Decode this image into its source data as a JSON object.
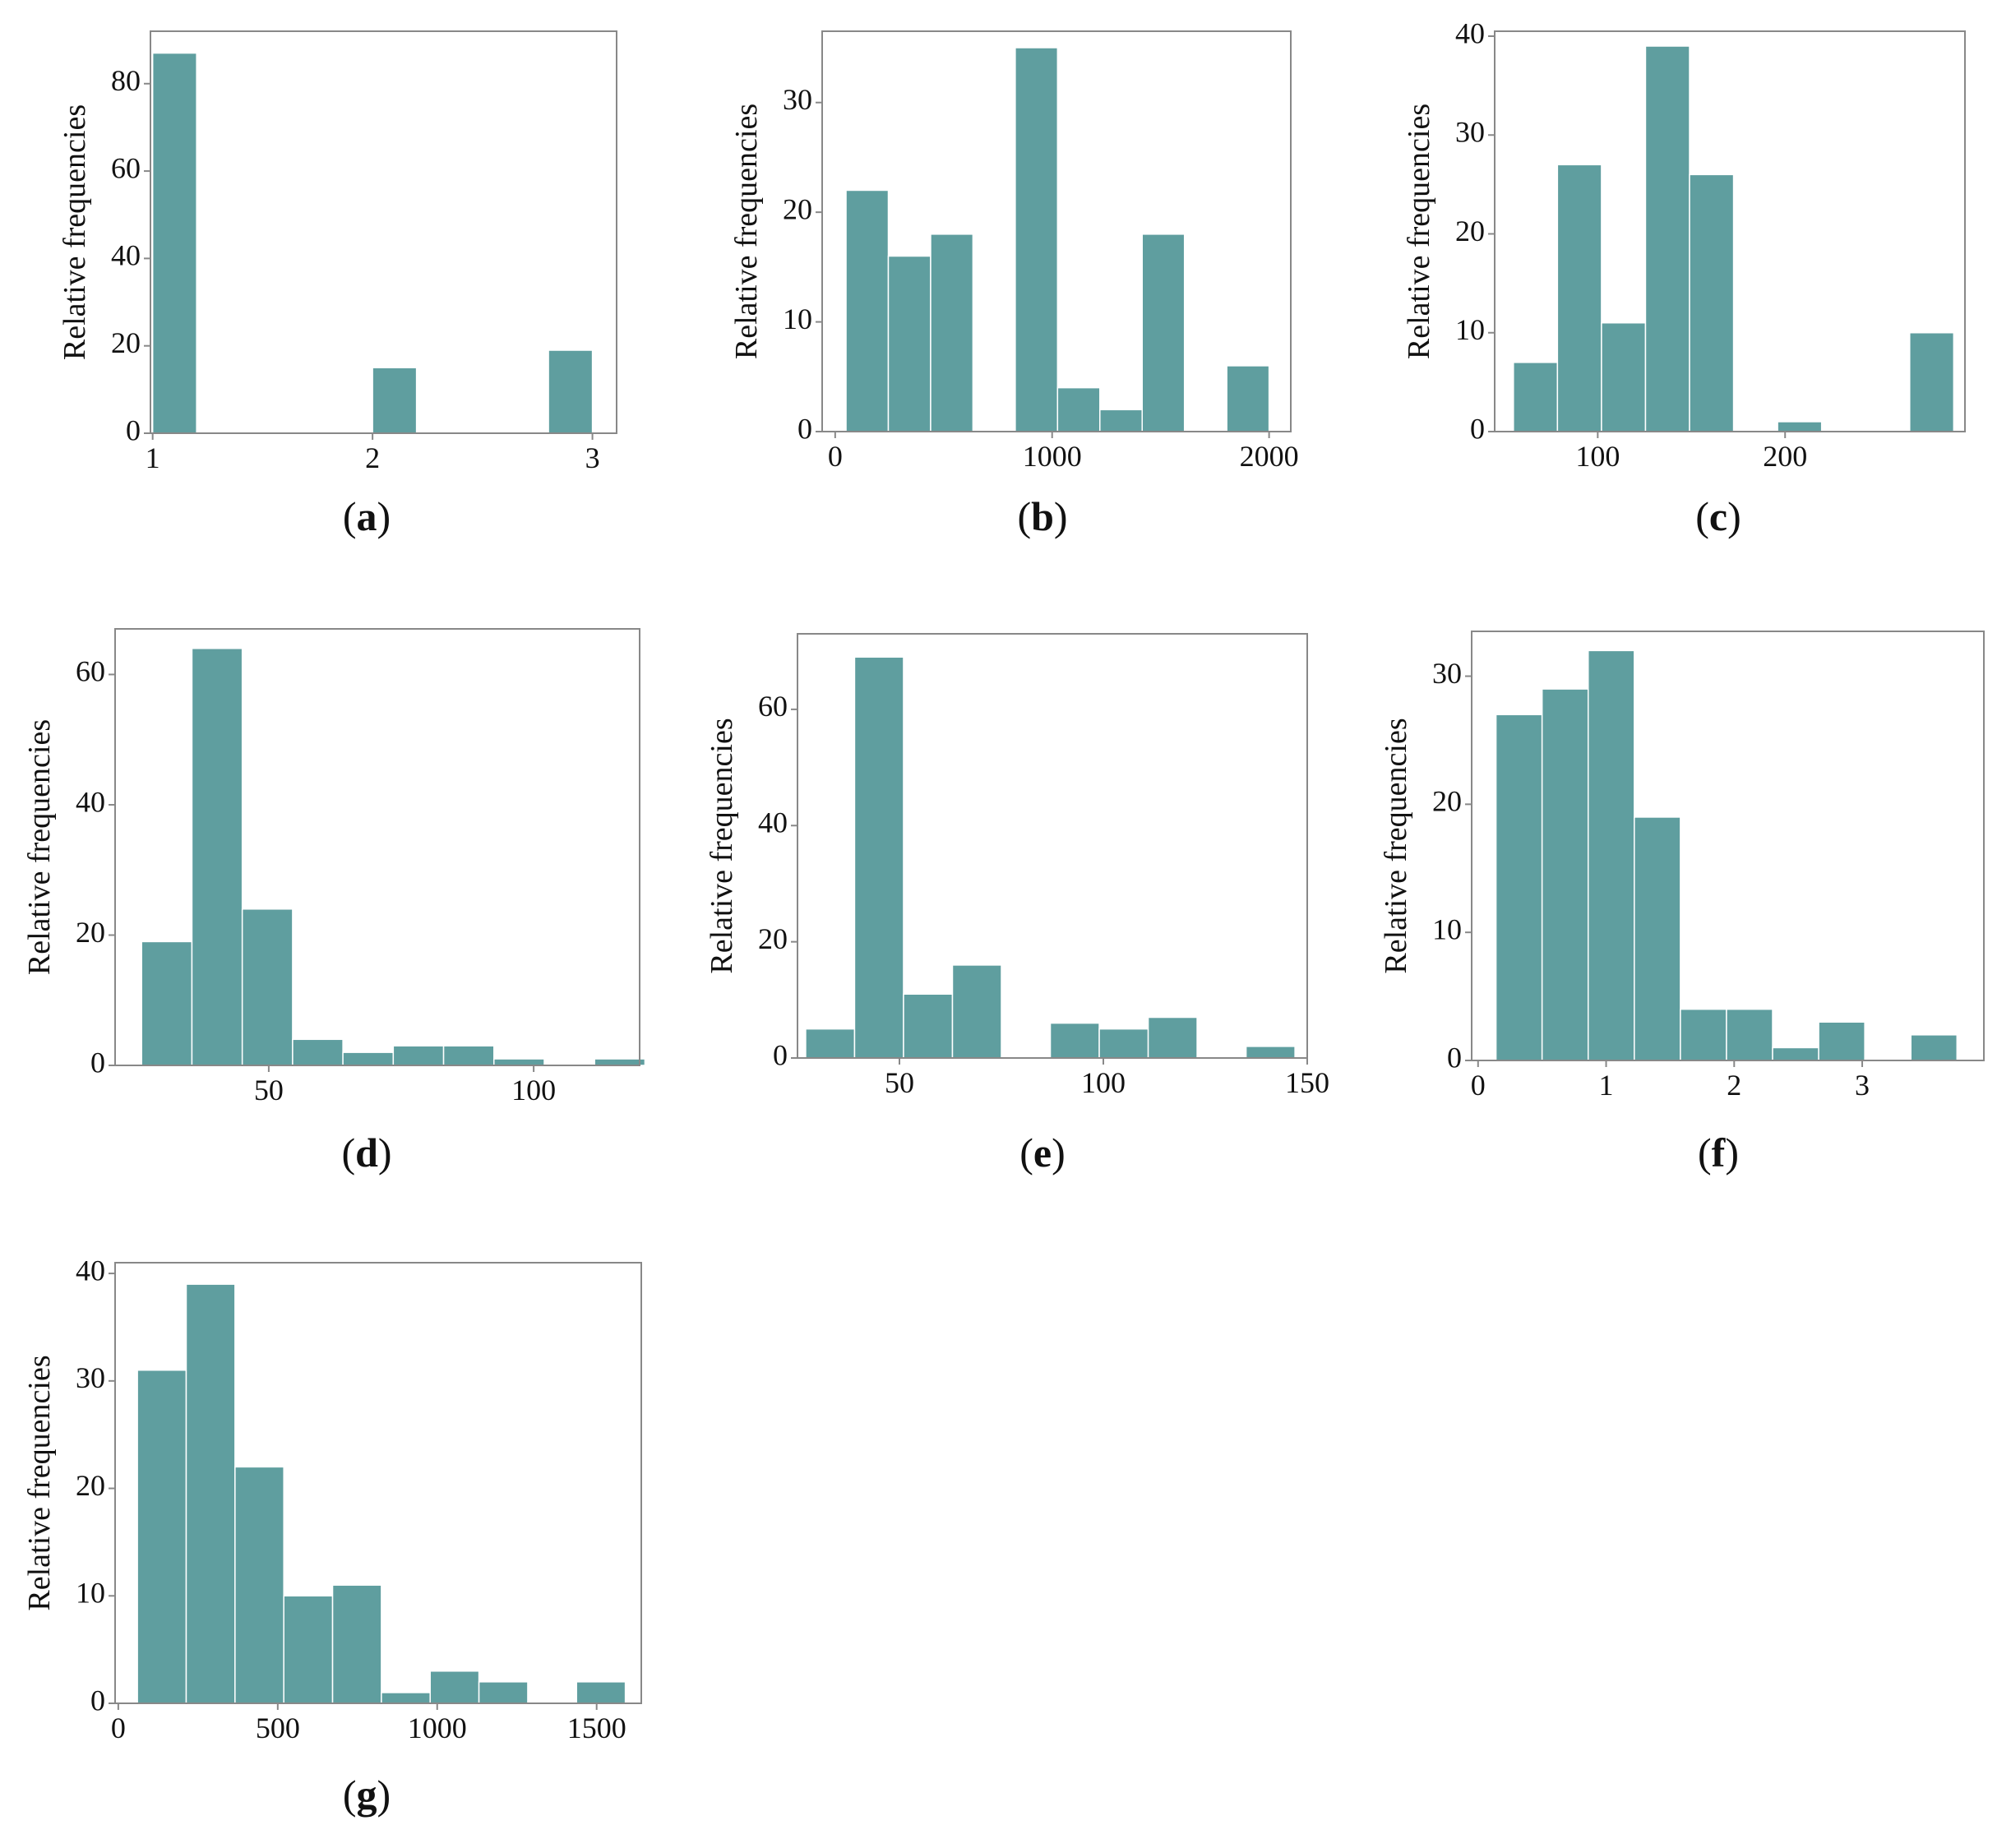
{
  "colors": {
    "bar": "#5f9e9f",
    "bar_edge": "#ffffff",
    "frame": "#888888",
    "text": "#111111"
  },
  "chart_data": [
    {
      "id": "a",
      "type": "bar",
      "caption": "a",
      "title": "",
      "xlabel": "",
      "ylabel": "Relative frequencies",
      "xlim": [
        0.99,
        3.11
      ],
      "ylim": [
        0,
        92
      ],
      "xticks": [
        1,
        2,
        3
      ],
      "yticks": [
        0,
        20,
        40,
        60,
        80
      ],
      "bins": [
        [
          1.0,
          1.2,
          87
        ],
        [
          2.0,
          2.2,
          15
        ],
        [
          2.8,
          3.0,
          19
        ]
      ]
    },
    {
      "id": "b",
      "type": "bar",
      "caption": "b",
      "title": "",
      "xlabel": "",
      "ylabel": "Relative frequencies",
      "xlim": [
        -60,
        2100
      ],
      "ylim": [
        0,
        36.5
      ],
      "xticks": [
        0,
        1000,
        2000
      ],
      "yticks": [
        0,
        10,
        20,
        30
      ],
      "bins": [
        [
          50,
          245,
          22
        ],
        [
          245,
          440,
          16
        ],
        [
          440,
          635,
          18
        ],
        [
          830,
          1025,
          35
        ],
        [
          1025,
          1220,
          4
        ],
        [
          1220,
          1415,
          2
        ],
        [
          1415,
          1610,
          18
        ],
        [
          1805,
          2000,
          6
        ]
      ]
    },
    {
      "id": "c",
      "type": "bar",
      "caption": "c",
      "title": "",
      "xlabel": "",
      "ylabel": "Relative frequencies",
      "xlim": [
        45,
        296
      ],
      "ylim": [
        0,
        40.5
      ],
      "xticks": [
        100,
        200
      ],
      "yticks": [
        0,
        10,
        20,
        30,
        40
      ],
      "bins": [
        [
          55,
          78.5,
          7
        ],
        [
          78.5,
          102,
          27
        ],
        [
          102,
          125.5,
          11
        ],
        [
          125.5,
          149,
          39
        ],
        [
          149,
          172.5,
          26
        ],
        [
          196,
          219.5,
          1
        ],
        [
          266.5,
          290,
          10
        ]
      ]
    },
    {
      "id": "d",
      "type": "bar",
      "caption": "d",
      "title": "",
      "xlabel": "",
      "ylabel": "Relative frequencies",
      "xlim": [
        21,
        120
      ],
      "ylim": [
        0,
        67
      ],
      "xticks": [
        50,
        100
      ],
      "yticks": [
        0,
        20,
        40,
        60
      ],
      "bins": [
        [
          26,
          35.5,
          19
        ],
        [
          35.5,
          45,
          64
        ],
        [
          45,
          54.5,
          24
        ],
        [
          54.5,
          64,
          4
        ],
        [
          64,
          73.5,
          2
        ],
        [
          73.5,
          83,
          3
        ],
        [
          83,
          92.5,
          3
        ],
        [
          92.5,
          102,
          1
        ],
        [
          111.5,
          121,
          1
        ]
      ]
    },
    {
      "id": "e",
      "type": "bar",
      "caption": "e",
      "title": "",
      "xlabel": "",
      "ylabel": "Relative frequencies",
      "xlim": [
        25,
        150
      ],
      "ylim": [
        0,
        73
      ],
      "xticks": [
        50,
        100,
        150
      ],
      "yticks": [
        0,
        20,
        40,
        60
      ],
      "bins": [
        [
          27,
          39,
          5
        ],
        [
          39,
          51,
          69
        ],
        [
          51,
          63,
          11
        ],
        [
          63,
          75,
          16
        ],
        [
          87,
          99,
          6
        ],
        [
          99,
          111,
          5
        ],
        [
          111,
          123,
          7
        ],
        [
          135,
          147,
          2
        ]
      ]
    },
    {
      "id": "f",
      "type": "bar",
      "caption": "f",
      "title": "",
      "xlabel": "",
      "ylabel": "Relative frequencies",
      "xlim": [
        -0.05,
        3.95
      ],
      "ylim": [
        0,
        33.5
      ],
      "xticks": [
        0,
        1,
        2,
        3
      ],
      "yticks": [
        0,
        10,
        20,
        30
      ],
      "bins": [
        [
          0.14,
          0.5,
          27
        ],
        [
          0.5,
          0.86,
          29
        ],
        [
          0.86,
          1.22,
          32
        ],
        [
          1.22,
          1.58,
          19
        ],
        [
          1.58,
          1.94,
          4
        ],
        [
          1.94,
          2.3,
          4
        ],
        [
          2.3,
          2.66,
          1
        ],
        [
          2.66,
          3.02,
          3
        ],
        [
          3.38,
          3.74,
          2
        ]
      ]
    },
    {
      "id": "g",
      "type": "bar",
      "caption": "g",
      "title": "",
      "xlabel": "",
      "ylabel": "Relative frequencies",
      "xlim": [
        -10,
        1640
      ],
      "ylim": [
        0,
        41
      ],
      "xticks": [
        0,
        500,
        1000,
        1500
      ],
      "yticks": [
        0,
        10,
        20,
        30,
        40
      ],
      "bins": [
        [
          60,
          213,
          31
        ],
        [
          213,
          366,
          39
        ],
        [
          366,
          519,
          22
        ],
        [
          519,
          672,
          10
        ],
        [
          672,
          825,
          11
        ],
        [
          825,
          978,
          1
        ],
        [
          978,
          1131,
          3
        ],
        [
          1131,
          1284,
          2
        ],
        [
          1437,
          1590,
          2
        ]
      ]
    }
  ]
}
